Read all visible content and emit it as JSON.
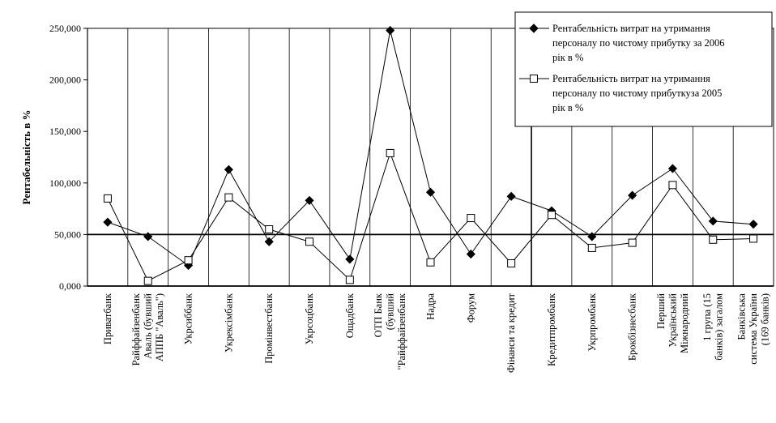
{
  "chart_data": {
    "type": "line",
    "ylabel": "Рентабельність в %",
    "xlabel": "",
    "ylim": [
      0,
      250
    ],
    "yticks": [
      "0,000",
      "50,000",
      "100,000",
      "150,000",
      "200,000",
      "250,000"
    ],
    "grid": "vertical lines",
    "legend_position": "top-right",
    "categories": [
      [
        "Приватбанк"
      ],
      [
        "Райффайзенбанк",
        "Аваль (бувший",
        "АППБ \"Аваль\")"
      ],
      [
        "Укрсиббанк"
      ],
      [
        "Укрексімбанк"
      ],
      [
        "Промінвестбанк"
      ],
      [
        "Укрсоцбанк"
      ],
      [
        "Ощадбанк"
      ],
      [
        "ОТП Банк",
        "(бувший",
        "\"Райффайзенбанк"
      ],
      [
        "Надра"
      ],
      [
        "Форум"
      ],
      [
        "Фінанси та кредит"
      ],
      [
        "Кредитпромбанк"
      ],
      [
        "Укрпромбанк"
      ],
      [
        "Брокбізнесбанк"
      ],
      [
        "Перший",
        "Український",
        "Міжнародний"
      ],
      [
        "1 група (15",
        "банків) загалом"
      ],
      [
        "Банківська",
        "система України",
        "(169 банків)"
      ]
    ],
    "series": [
      {
        "name": "Рентабельність витрат на утримання персоналу по чистому прибутку за 2006 рік в %",
        "marker": "diamond",
        "values": [
          62,
          48,
          20,
          113,
          43,
          83,
          26,
          248,
          91,
          31,
          87,
          73,
          48,
          88,
          114,
          63,
          60
        ]
      },
      {
        "name": "Рентабельність витрат на утримання персоналу по чистому прибуткуза 2005 рік в %",
        "marker": "square",
        "values": [
          85,
          5,
          25,
          86,
          55,
          43,
          6,
          129,
          23,
          66,
          22,
          69,
          37,
          42,
          98,
          45,
          46
        ]
      }
    ],
    "legend_lines": [
      [
        "Рентабельність витрат на утримання",
        "персоналу по чистому прибутку за 2006",
        "рік в %"
      ],
      [
        "Рентабельність витрат на утримання",
        "персоналу по чистому прибуткуза 2005",
        "рік в %"
      ]
    ]
  }
}
